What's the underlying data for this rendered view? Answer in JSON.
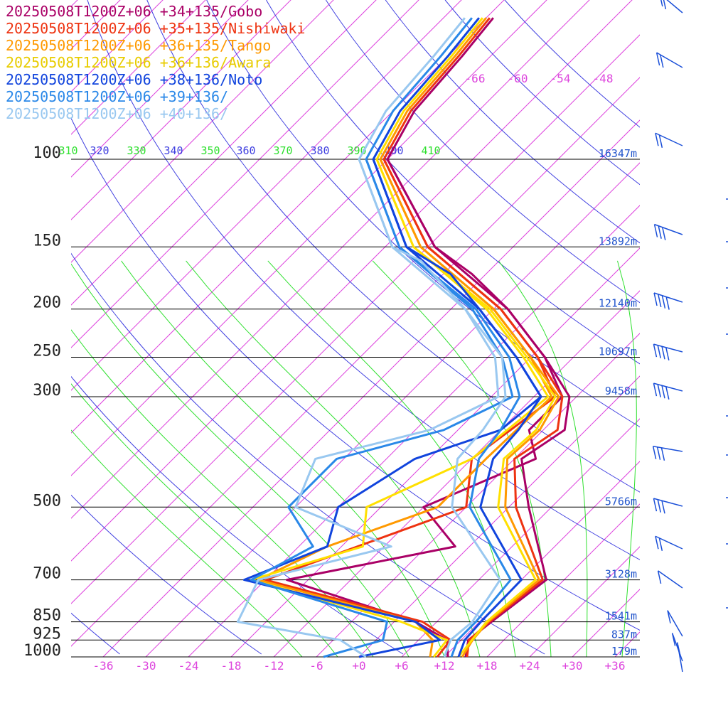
{
  "chart_data": {
    "type": "line",
    "title": "",
    "legend_placement": "top-left",
    "pressure_levels": [
      100,
      150,
      200,
      250,
      300,
      500,
      700,
      850,
      925,
      1000
    ],
    "height_labels": [
      {
        "p": 100,
        "label": "16347m"
      },
      {
        "p": 150,
        "label": "13892m"
      },
      {
        "p": 200,
        "label": "12140m"
      },
      {
        "p": 250,
        "label": "10697m"
      },
      {
        "p": 300,
        "label": "9458m"
      },
      {
        "p": 500,
        "label": "5766m"
      },
      {
        "p": 700,
        "label": "3128m"
      },
      {
        "p": 850,
        "label": "1541m"
      },
      {
        "p": 925,
        "label": "837m"
      },
      {
        "p": 1000,
        "label": "179m"
      }
    ],
    "temp_ticks": [
      {
        "t": -36,
        "label": "-36"
      },
      {
        "t": -30,
        "label": "-30"
      },
      {
        "t": -24,
        "label": "-24"
      },
      {
        "t": -18,
        "label": "-18"
      },
      {
        "t": -12,
        "label": "-12"
      },
      {
        "t": -6,
        "label": "-6"
      },
      {
        "t": 0,
        "label": "+0"
      },
      {
        "t": 6,
        "label": "+6"
      },
      {
        "t": 12,
        "label": "+12"
      },
      {
        "t": 18,
        "label": "+18"
      },
      {
        "t": 24,
        "label": "+24"
      },
      {
        "t": 30,
        "label": "+30"
      },
      {
        "t": 36,
        "label": "+36"
      }
    ],
    "upper_temp_labels": [
      "-66",
      "-60",
      "-54",
      "-48"
    ],
    "theta_labels": [
      "310",
      "320",
      "330",
      "340",
      "350",
      "360",
      "370",
      "380",
      "390",
      "400",
      "410"
    ],
    "colors": {
      "isotherm": "#dd44dd",
      "dry_adiabat": "#4040e0",
      "moist_adiabat": "#30e030",
      "isobar": "#000000",
      "axis_label": "#dd44dd",
      "height_label": "#2255cc",
      "barb": "#1a4fd8"
    },
    "series": [
      {
        "name": "20250508T1200Z+06 +34+135/Gobo",
        "color": "#aa0066",
        "points": [
          [
            1000,
            15
          ],
          [
            925,
            13
          ],
          [
            850,
            13.7
          ],
          [
            700,
            15.5
          ],
          [
            500,
            2.8
          ],
          [
            400,
            -5
          ],
          [
            350,
            -3
          ],
          [
            300,
            -7
          ],
          [
            250,
            -16
          ],
          [
            200,
            -28
          ],
          [
            150,
            -47
          ],
          [
            100,
            -66
          ]
        ],
        "dewpoints": [
          [
            1000,
            12.5
          ],
          [
            925,
            10
          ],
          [
            850,
            3
          ],
          [
            700,
            -21
          ],
          [
            600,
            -2
          ],
          [
            500,
            -12
          ],
          [
            400,
            -3
          ],
          [
            350,
            -8
          ],
          [
            300,
            -8
          ],
          [
            250,
            -16
          ],
          [
            200,
            -28
          ],
          [
            170,
            -38
          ],
          [
            150,
            -47
          ],
          [
            100,
            -66
          ]
        ]
      },
      {
        "name": "20250508T1200Z+06 +35+135/Nishiwaki",
        "color": "#ee3311",
        "points": [
          [
            1000,
            15.2
          ],
          [
            925,
            13.1
          ],
          [
            850,
            13.4
          ],
          [
            700,
            15
          ],
          [
            500,
            1
          ],
          [
            400,
            -6
          ],
          [
            350,
            -4
          ],
          [
            300,
            -8
          ],
          [
            250,
            -17
          ],
          [
            200,
            -29
          ],
          [
            150,
            -48
          ],
          [
            100,
            -66.5
          ]
        ],
        "dewpoints": [
          [
            1000,
            11
          ],
          [
            925,
            10.5
          ],
          [
            850,
            4
          ],
          [
            700,
            -24
          ],
          [
            500,
            -6
          ],
          [
            400,
            -12
          ],
          [
            300,
            -9
          ],
          [
            250,
            -17
          ],
          [
            200,
            -29
          ],
          [
            150,
            -48
          ],
          [
            100,
            -66.5
          ]
        ]
      },
      {
        "name": "20250508T1200Z+06 +36+135/Tango",
        "color": "#ff9900",
        "points": [
          [
            1000,
            14.5
          ],
          [
            925,
            13.6
          ],
          [
            850,
            13.2
          ],
          [
            700,
            14.5
          ],
          [
            500,
            -0.5
          ],
          [
            400,
            -7
          ],
          [
            350,
            -6.5
          ],
          [
            300,
            -8.5
          ],
          [
            250,
            -18
          ],
          [
            200,
            -30
          ],
          [
            150,
            -49
          ],
          [
            100,
            -67
          ]
        ],
        "dewpoints": [
          [
            1000,
            10
          ],
          [
            925,
            8
          ],
          [
            850,
            3
          ],
          [
            700,
            -25
          ],
          [
            600,
            -20
          ],
          [
            500,
            -10
          ],
          [
            400,
            -10
          ],
          [
            300,
            -9.5
          ],
          [
            250,
            -18
          ],
          [
            200,
            -30
          ],
          [
            150,
            -49
          ],
          [
            100,
            -67
          ]
        ]
      },
      {
        "name": "20250508T1200Z+06 +36+136/Awara",
        "color": "#ffe000",
        "points": [
          [
            1000,
            14
          ],
          [
            925,
            13.5
          ],
          [
            850,
            13
          ],
          [
            700,
            14
          ],
          [
            500,
            -1.5
          ],
          [
            400,
            -7.5
          ],
          [
            350,
            -7
          ],
          [
            300,
            -9
          ],
          [
            250,
            -18.5
          ],
          [
            200,
            -30.5
          ],
          [
            150,
            -50
          ],
          [
            100,
            -67.5
          ]
        ],
        "dewpoints": [
          [
            1000,
            10.5
          ],
          [
            925,
            10
          ],
          [
            850,
            1
          ],
          [
            700,
            -26
          ],
          [
            600,
            -15
          ],
          [
            500,
            -20
          ],
          [
            400,
            -12
          ],
          [
            300,
            -10
          ],
          [
            250,
            -19
          ],
          [
            200,
            -31
          ],
          [
            150,
            -50
          ],
          [
            100,
            -67.5
          ]
        ]
      },
      {
        "name": "20250508T1200Z+06 +38+136/Noto",
        "color": "#1144dd",
        "points": [
          [
            1000,
            14
          ],
          [
            925,
            12.5
          ],
          [
            850,
            12.2
          ],
          [
            700,
            12
          ],
          [
            500,
            -4
          ],
          [
            400,
            -9
          ],
          [
            350,
            -9.5
          ],
          [
            300,
            -11
          ],
          [
            250,
            -20
          ],
          [
            200,
            -32
          ],
          [
            170,
            -41
          ],
          [
            150,
            -51
          ],
          [
            100,
            -68
          ]
        ],
        "dewpoints": [
          [
            1000,
            0
          ],
          [
            925,
            9
          ],
          [
            850,
            3
          ],
          [
            700,
            -27
          ],
          [
            600,
            -20
          ],
          [
            500,
            -24
          ],
          [
            400,
            -20
          ],
          [
            350,
            -12
          ],
          [
            300,
            -11
          ],
          [
            250,
            -20
          ],
          [
            200,
            -32
          ],
          [
            150,
            -51
          ],
          [
            100,
            -68
          ]
        ]
      },
      {
        "name": "20250508T1200Z+06 +39+136/",
        "color": "#2a88e8",
        "points": [
          [
            1000,
            13
          ],
          [
            925,
            11.5
          ],
          [
            850,
            11.5
          ],
          [
            700,
            10.5
          ],
          [
            500,
            -5.5
          ],
          [
            400,
            -11
          ],
          [
            350,
            -12
          ],
          [
            300,
            -14
          ],
          [
            250,
            -21
          ],
          [
            200,
            -32.5
          ],
          [
            150,
            -52
          ],
          [
            100,
            -69
          ]
        ],
        "dewpoints": [
          [
            1000,
            -5
          ],
          [
            925,
            1
          ],
          [
            850,
            -1
          ],
          [
            700,
            -26
          ],
          [
            600,
            -22
          ],
          [
            500,
            -31
          ],
          [
            400,
            -31
          ],
          [
            350,
            -20
          ],
          [
            300,
            -15
          ],
          [
            250,
            -22
          ],
          [
            200,
            -33
          ],
          [
            150,
            -52
          ],
          [
            100,
            -69
          ]
        ]
      },
      {
        "name": "20250508T1200Z+06 +40+136/",
        "color": "#99c8f0",
        "points": [
          [
            1000,
            12
          ],
          [
            925,
            10.5
          ],
          [
            850,
            11
          ],
          [
            700,
            9
          ],
          [
            500,
            -8
          ],
          [
            400,
            -14
          ],
          [
            350,
            -14.5
          ],
          [
            300,
            -16
          ],
          [
            250,
            -22
          ],
          [
            200,
            -34
          ],
          [
            160,
            -47
          ],
          [
            150,
            -53
          ],
          [
            100,
            -70
          ]
        ],
        "dewpoints": [
          [
            1000,
            1
          ],
          [
            925,
            -5
          ],
          [
            850,
            -22
          ],
          [
            700,
            -25
          ],
          [
            600,
            -11
          ],
          [
            500,
            -30
          ],
          [
            400,
            -34
          ],
          [
            350,
            -22
          ],
          [
            300,
            -17
          ],
          [
            250,
            -23
          ],
          [
            200,
            -34
          ],
          [
            150,
            -53
          ],
          [
            100,
            -70
          ]
        ]
      }
    ]
  }
}
